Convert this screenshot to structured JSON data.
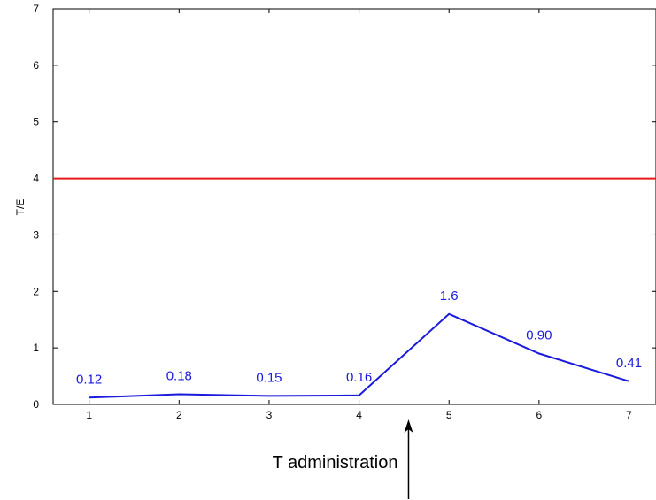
{
  "chart_data": {
    "type": "line",
    "title": "",
    "xlabel": "",
    "ylabel": "T/E",
    "xlim": [
      0.6,
      7.3
    ],
    "ylim": [
      0,
      7
    ],
    "x_ticks": [
      "1",
      "2",
      "3",
      "4",
      "5",
      "6",
      "7"
    ],
    "y_ticks": [
      "0",
      "1",
      "2",
      "3",
      "4",
      "5",
      "6",
      "7"
    ],
    "grid": false,
    "series": [
      {
        "x": [
          1,
          2,
          3,
          4,
          5,
          6,
          7
        ],
        "values": [
          0.12,
          0.18,
          0.15,
          0.16,
          1.6,
          0.9,
          0.41
        ],
        "labels": [
          "0.12",
          "0.18",
          "0.15",
          "0.16",
          "1.6",
          "0.90",
          "0.41"
        ],
        "color": "#1a1adc"
      }
    ],
    "reference_line": {
      "y": 4,
      "color": "#e41a1a"
    },
    "annotation": {
      "text": "T administration",
      "x": 4.55
    }
  }
}
